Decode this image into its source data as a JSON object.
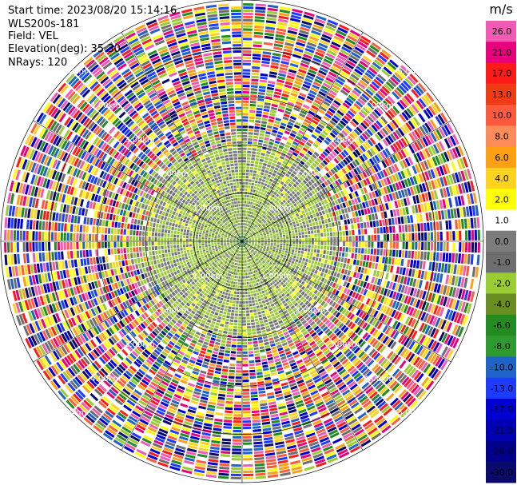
{
  "header": {
    "start_time": "Start time: 2023/08/20 15:14:16",
    "station": "WLS200s-181",
    "field": "Field: VEL",
    "elevation": "Elevation(deg): 35.30",
    "nrays": "NRays: 120"
  },
  "chart_data": {
    "type": "heatmap",
    "projection": "polar-ppi",
    "field": "VEL",
    "nrays": 120,
    "range_rings_km": [
      1.0,
      2.0,
      3.0,
      4.0,
      5.0
    ],
    "ring_label_text": [
      "1.00km",
      "2.00km",
      "3.00km",
      "4.00km",
      "5.00km"
    ],
    "max_range_km": 5.0,
    "colorbar": {
      "unit": "m/s",
      "ticks": [
        "26.0",
        "21.0",
        "17.0",
        "13.0",
        "10.0",
        "8.0",
        "6.0",
        "4.0",
        "2.0",
        "1.0",
        "0.0",
        "-1.0",
        "-2.0",
        "-4.0",
        "-6.0",
        "-8.0",
        "-10.0",
        "-13.0",
        "-17.0",
        "-21.0",
        "-26.0",
        "-30.0"
      ],
      "colors": [
        "#f25ab4",
        "#e8007d",
        "#ff1a1a",
        "#f03c14",
        "#ff5a3c",
        "#ff8a5a",
        "#ffa014",
        "#ffd21e",
        "#ffff00",
        "#ffffff",
        "#7d7d7d",
        "#6e6e6e",
        "#9acd32",
        "#6b8e23",
        "#228b22",
        "#2e9b2e",
        "#1e64c8",
        "#1e3cff",
        "#0000d2",
        "#0000b4",
        "#00008b",
        "#0a0a6e"
      ]
    },
    "inner_pattern": {
      "near_range_colors": [
        "#9acd32",
        "#6b8e23",
        "#7d7d7d",
        "#6e6e6e"
      ],
      "noise_colors": [
        "#f25ab4",
        "#e8007d",
        "#ff1a1a",
        "#ffd21e",
        "#ffff00",
        "#0000d2",
        "#1e3cff",
        "#228b22",
        "#9acd32",
        "#6e6e6e",
        "#ff5a3c",
        "#0a0a6e",
        "#ffa014",
        "#1e64c8",
        "#ffffff"
      ]
    }
  }
}
